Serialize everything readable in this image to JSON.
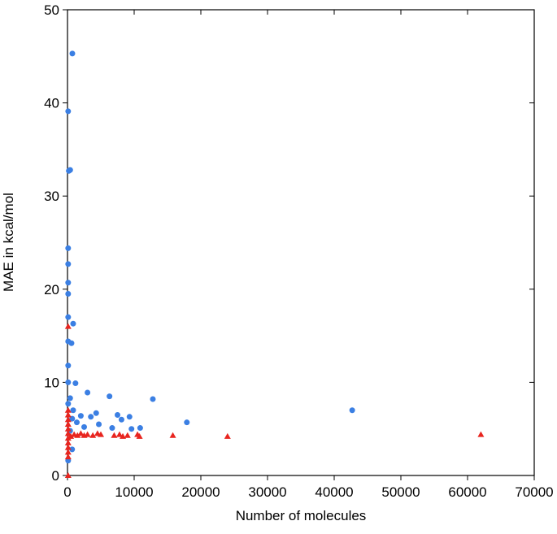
{
  "chart_data": {
    "type": "scatter",
    "x_label": "Number of molecules",
    "y_label": "MAE in kcal/mol",
    "xlim": [
      0,
      70000
    ],
    "ylim": [
      0,
      50
    ],
    "xticks": [
      0,
      10000,
      20000,
      30000,
      40000,
      50000,
      60000,
      70000
    ],
    "yticks": [
      0,
      10,
      20,
      30,
      40,
      50
    ],
    "grid": false,
    "series": [
      {
        "color": "#3b7fe3",
        "marker": "circle",
        "x": [
          730,
          100,
          200,
          400,
          100,
          100,
          100,
          100,
          100,
          100,
          600,
          850,
          100,
          100,
          1200,
          100,
          400,
          700,
          3000,
          12800,
          17900,
          42700,
          6300,
          4300,
          7500,
          8100,
          9300,
          10900,
          9600,
          6700,
          4700,
          3500,
          2500,
          2000,
          1400,
          850,
          400,
          700,
          100
        ],
        "y": [
          45.3,
          39.1,
          32.7,
          32.8,
          24.4,
          22.7,
          20.7,
          19.5,
          17.0,
          14.4,
          14.2,
          16.3,
          11.8,
          10.0,
          9.9,
          7.7,
          8.3,
          6.1,
          8.9,
          8.2,
          5.7,
          7.0,
          8.5,
          6.7,
          6.5,
          6.0,
          6.3,
          5.1,
          5.0,
          5.1,
          5.5,
          6.3,
          5.2,
          6.4,
          5.7,
          7.0,
          4.8,
          2.8,
          1.6
        ]
      },
      {
        "color": "#e8251f",
        "marker": "triangle",
        "x": [
          62000,
          24000,
          15800,
          10800,
          10500,
          9000,
          8300,
          7800,
          7000,
          5000,
          4500,
          3800,
          3000,
          2500,
          2000,
          1500,
          1000,
          500,
          100,
          100,
          100,
          100,
          100,
          100,
          100,
          100,
          100,
          100,
          100,
          100,
          100
        ],
        "y": [
          4.4,
          4.2,
          4.3,
          4.2,
          4.4,
          4.3,
          4.2,
          4.4,
          4.3,
          4.4,
          4.5,
          4.3,
          4.4,
          4.3,
          4.5,
          4.3,
          4.4,
          4.2,
          16.0,
          7.0,
          6.5,
          6.0,
          5.5,
          5.0,
          4.5,
          4.0,
          3.5,
          3.0,
          2.5,
          2.0,
          0
        ]
      }
    ]
  }
}
